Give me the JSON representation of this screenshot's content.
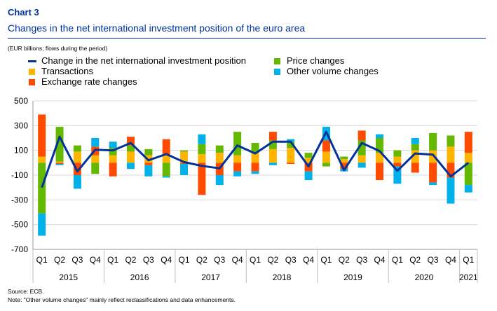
{
  "header": {
    "chart_number": "Chart 3",
    "title": "Changes in the net international investment position of the euro area",
    "unit": "(EUR billions; flows during the period)"
  },
  "footer": {
    "source": "Source: ECB.",
    "note": "Note: \"Other volume changes\" mainly reflect reclassifications and data enhancements."
  },
  "colors": {
    "net_change": "#003399",
    "transactions": "#ffb400",
    "exchange_rate": "#ff4b00",
    "price": "#65b800",
    "other_volume": "#00b1ea",
    "grid": "#d9d9d9"
  },
  "chart_data": {
    "type": "bar",
    "stacked": true,
    "ylim": [
      -700,
      500
    ],
    "yticks": [
      500,
      300,
      100,
      -100,
      -300,
      -500,
      -700
    ],
    "grid": true,
    "legend_position": "top",
    "categories": [
      "Q1",
      "Q2",
      "Q3",
      "Q4",
      "Q1",
      "Q2",
      "Q3",
      "Q4",
      "Q1",
      "Q2",
      "Q3",
      "Q4",
      "Q1",
      "Q2",
      "Q3",
      "Q4",
      "Q1",
      "Q2",
      "Q3",
      "Q4",
      "Q1",
      "Q2",
      "Q3",
      "Q4",
      "Q1"
    ],
    "year_groups": [
      {
        "label": "2015",
        "quarters": 4
      },
      {
        "label": "2016",
        "quarters": 4
      },
      {
        "label": "2017",
        "quarters": 4
      },
      {
        "label": "2018",
        "quarters": 4
      },
      {
        "label": "2019",
        "quarters": 4
      },
      {
        "label": "2020",
        "quarters": 4
      },
      {
        "label": "2021",
        "quarters": 1
      }
    ],
    "series": [
      {
        "name": "Transactions",
        "color": "#ffb400",
        "type": "bar",
        "values": [
          50,
          10,
          90,
          60,
          60,
          90,
          60,
          60,
          90,
          70,
          80,
          60,
          80,
          110,
          120,
          40,
          90,
          30,
          60,
          80,
          50,
          100,
          100,
          130,
          80
        ]
      },
      {
        "name": "Price changes",
        "color": "#65b800",
        "type": "bar",
        "values": [
          -410,
          280,
          50,
          -90,
          60,
          50,
          50,
          -110,
          10,
          80,
          60,
          190,
          80,
          70,
          50,
          40,
          -30,
          20,
          120,
          120,
          50,
          50,
          140,
          90,
          -180
        ]
      },
      {
        "name": "Exchange rate changes",
        "color": "#ff4b00",
        "type": "bar",
        "values": [
          340,
          -10,
          -100,
          70,
          -110,
          70,
          -20,
          130,
          -10,
          -260,
          -100,
          -70,
          -70,
          70,
          -10,
          -70,
          90,
          -50,
          80,
          -140,
          -30,
          -80,
          -160,
          -120,
          170
        ]
      },
      {
        "name": "Other volume changes",
        "color": "#00b1ea",
        "type": "bar",
        "values": [
          -180,
          -10,
          -110,
          70,
          50,
          -50,
          -90,
          -10,
          -90,
          80,
          -80,
          -40,
          -20,
          -20,
          20,
          -70,
          110,
          -20,
          -40,
          30,
          -140,
          50,
          -20,
          -210,
          -60
        ]
      },
      {
        "name": "Change in the net international investment position",
        "color": "#003399",
        "type": "line",
        "values": [
          -200,
          210,
          -70,
          105,
          100,
          160,
          20,
          70,
          5,
          -25,
          -45,
          140,
          75,
          170,
          170,
          -30,
          250,
          -60,
          160,
          95,
          -65,
          75,
          65,
          -110,
          0
        ]
      }
    ],
    "legend": [
      {
        "name": "Change in the net international investment position",
        "marker": "line"
      },
      {
        "name": "Price changes",
        "marker": "square"
      },
      {
        "name": "Transactions",
        "marker": "square"
      },
      {
        "name": "Other volume changes",
        "marker": "square"
      },
      {
        "name": "Exchange rate changes",
        "marker": "square"
      }
    ]
  }
}
